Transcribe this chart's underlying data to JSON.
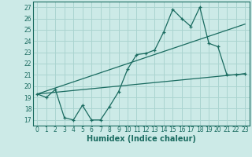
{
  "xlabel": "Humidex (Indice chaleur)",
  "bg_color": "#cceae7",
  "grid_color": "#aad4d0",
  "line_color": "#1a6b60",
  "xlim": [
    -0.5,
    23.5
  ],
  "ylim": [
    16.5,
    27.5
  ],
  "yticks": [
    17,
    18,
    19,
    20,
    21,
    22,
    23,
    24,
    25,
    26,
    27
  ],
  "xticks": [
    0,
    1,
    2,
    3,
    4,
    5,
    6,
    7,
    8,
    9,
    10,
    11,
    12,
    13,
    14,
    15,
    16,
    17,
    18,
    19,
    20,
    21,
    22,
    23
  ],
  "curve_x": [
    0,
    1,
    2,
    3,
    4,
    5,
    6,
    7,
    8,
    9,
    10,
    11,
    12,
    13,
    14,
    15,
    16,
    17,
    18,
    19,
    20,
    21,
    22,
    23
  ],
  "curve_y": [
    19.3,
    19.0,
    19.7,
    17.2,
    17.0,
    18.3,
    17.0,
    17.0,
    18.2,
    19.5,
    21.5,
    22.8,
    22.9,
    23.2,
    24.8,
    26.8,
    26.0,
    25.3,
    27.0,
    23.8,
    23.5,
    21.0,
    21.0,
    21.1
  ],
  "line1_x": [
    0,
    23
  ],
  "line1_y": [
    19.3,
    21.1
  ],
  "line2_x": [
    0,
    23
  ],
  "line2_y": [
    19.3,
    25.5
  ],
  "tick_fontsize": 5.5,
  "xlabel_fontsize": 7.0
}
